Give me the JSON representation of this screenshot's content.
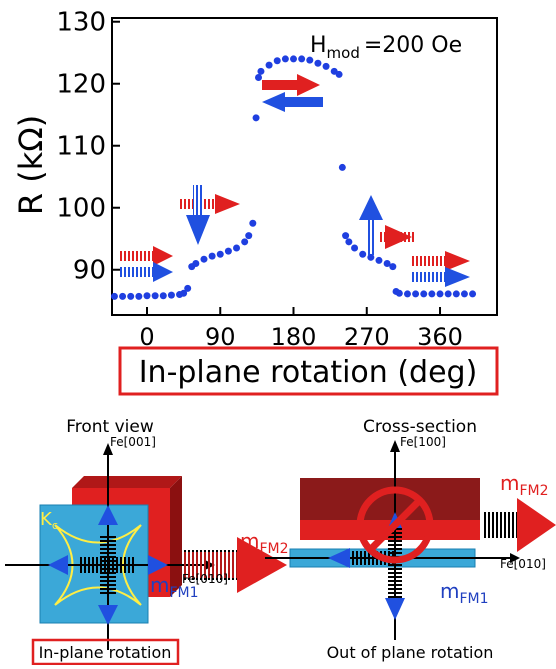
{
  "chart_data": {
    "type": "scatter",
    "y_label": "R (kΩ)",
    "x_label": "In-plane rotation (deg)",
    "annotation": {
      "main": "H",
      "sub": "mod",
      "rest": "=200 Oe"
    },
    "color": "#1f3fe0",
    "x": [
      -40,
      -30,
      -20,
      -10,
      0,
      10,
      20,
      30,
      40,
      45,
      50,
      55,
      60,
      70,
      80,
      90,
      100,
      110,
      120,
      125,
      130,
      134,
      137,
      140,
      150,
      160,
      170,
      180,
      190,
      200,
      210,
      220,
      230,
      236,
      240,
      244,
      248,
      255,
      265,
      275,
      285,
      295,
      302,
      306,
      310,
      320,
      330,
      340,
      350,
      360,
      370,
      380,
      390,
      400
    ],
    "values": [
      85.7,
      85.7,
      85.7,
      85.7,
      85.8,
      85.8,
      85.8,
      85.9,
      86,
      86.2,
      87,
      90.5,
      91,
      91.7,
      92.2,
      92.5,
      93,
      93.5,
      94.5,
      95.5,
      97.5,
      114.5,
      121,
      122,
      123,
      123.7,
      124,
      124,
      124,
      123.8,
      123.3,
      122.8,
      122,
      121.5,
      106.5,
      95.5,
      94.5,
      93.5,
      92.5,
      92,
      91.5,
      91,
      90.5,
      86.5,
      86.2,
      86.1,
      86.1,
      86.1,
      86.1,
      86.1,
      86.1,
      86.1,
      86.1,
      86.1
    ],
    "xlim": [
      -43,
      430
    ],
    "xticks": [
      0,
      90,
      180,
      270,
      360
    ],
    "ylim": [
      82.7,
      130.6
    ],
    "yticks": [
      90,
      100,
      110,
      120,
      130
    ]
  },
  "diagrams": {
    "left": {
      "title": "Front view",
      "axis_v": "Fe[001]",
      "axis_h": "Fe[010]",
      "m2": "m",
      "m2_sub": "FM2",
      "k": "K",
      "k_sub": "c",
      "m1": "m",
      "m1_sub": "FM1",
      "caption": "In-plane rotation"
    },
    "right": {
      "title": "Cross-section",
      "axis_v": "Fe[100]",
      "axis_h": "Fe[010]",
      "m2": "m",
      "m2_sub": "FM2",
      "m1": "m",
      "m1_sub": "FM1",
      "caption": "Out of plane rotation"
    }
  }
}
